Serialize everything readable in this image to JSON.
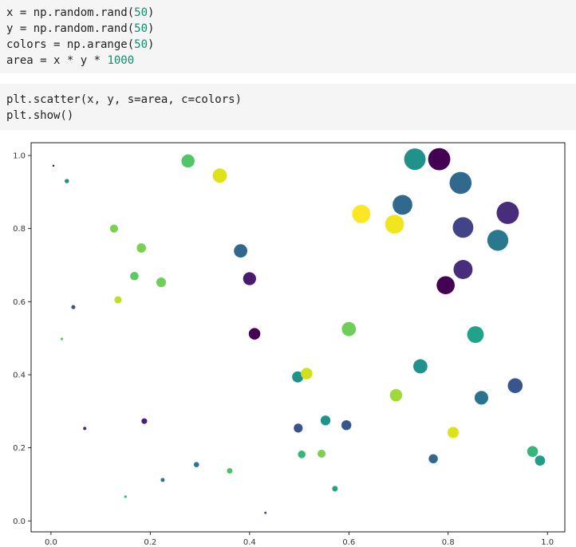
{
  "cells": [
    {
      "lines": [
        [
          {
            "t": "x = np.random.rand("
          },
          {
            "t": "50",
            "n": true
          },
          {
            "t": ")"
          }
        ],
        [
          {
            "t": "y = np.random.rand("
          },
          {
            "t": "50",
            "n": true
          },
          {
            "t": ")"
          }
        ],
        [
          {
            "t": "colors = np.arange("
          },
          {
            "t": "50",
            "n": true
          },
          {
            "t": ")"
          }
        ],
        [
          {
            "t": "area = x * y * "
          },
          {
            "t": "1000",
            "n": true
          }
        ]
      ]
    },
    {
      "lines": [
        [
          {
            "t": "plt.scatter(x, y, s=area, c=colors)"
          }
        ],
        [
          {
            "t": "plt.show()"
          }
        ]
      ]
    }
  ],
  "chart_data": {
    "type": "scatter",
    "xlim": [
      -0.04,
      1.035
    ],
    "ylim": [
      -0.03,
      1.035
    ],
    "xticks": [
      "0.0",
      "0.2",
      "0.4",
      "0.6",
      "0.8",
      "1.0"
    ],
    "yticks": [
      "0.0",
      "0.2",
      "0.4",
      "0.6",
      "0.8",
      "1.0"
    ],
    "grid": false,
    "colormap": "viridis",
    "points": [
      {
        "x": 0.005,
        "y": 0.972,
        "s": 5,
        "c": "#440154"
      },
      {
        "x": 0.032,
        "y": 0.93,
        "s": 30,
        "c": "#21918c"
      },
      {
        "x": 0.045,
        "y": 0.585,
        "s": 26,
        "c": "#3b528b"
      },
      {
        "x": 0.022,
        "y": 0.498,
        "s": 11,
        "c": "#5ec962"
      },
      {
        "x": 0.068,
        "y": 0.253,
        "s": 17,
        "c": "#482878"
      },
      {
        "x": 0.127,
        "y": 0.8,
        "s": 102,
        "c": "#7ad151"
      },
      {
        "x": 0.135,
        "y": 0.605,
        "s": 82,
        "c": "#bddf26"
      },
      {
        "x": 0.15,
        "y": 0.066,
        "s": 10,
        "c": "#35b779"
      },
      {
        "x": 0.168,
        "y": 0.67,
        "s": 112,
        "c": "#5ec962"
      },
      {
        "x": 0.182,
        "y": 0.747,
        "s": 136,
        "c": "#7ad151"
      },
      {
        "x": 0.188,
        "y": 0.273,
        "s": 51,
        "c": "#482173"
      },
      {
        "x": 0.222,
        "y": 0.653,
        "s": 145,
        "c": "#6ece58"
      },
      {
        "x": 0.225,
        "y": 0.112,
        "s": 25,
        "c": "#2a788e"
      },
      {
        "x": 0.276,
        "y": 0.985,
        "s": 272,
        "c": "#52c569"
      },
      {
        "x": 0.293,
        "y": 0.154,
        "s": 45,
        "c": "#2a788e"
      },
      {
        "x": 0.34,
        "y": 0.945,
        "s": 321,
        "c": "#dde318"
      },
      {
        "x": 0.36,
        "y": 0.137,
        "s": 49,
        "c": "#4ac16d"
      },
      {
        "x": 0.382,
        "y": 0.739,
        "s": 282,
        "c": "#31688e"
      },
      {
        "x": 0.4,
        "y": 0.663,
        "s": 265,
        "c": "#481b6d"
      },
      {
        "x": 0.41,
        "y": 0.512,
        "s": 210,
        "c": "#440154"
      },
      {
        "x": 0.432,
        "y": 0.022,
        "s": 9,
        "c": "#3b528b"
      },
      {
        "x": 0.497,
        "y": 0.394,
        "s": 196,
        "c": "#21918c"
      },
      {
        "x": 0.498,
        "y": 0.254,
        "s": 126,
        "c": "#3b528b"
      },
      {
        "x": 0.505,
        "y": 0.182,
        "s": 92,
        "c": "#35b779"
      },
      {
        "x": 0.515,
        "y": 0.403,
        "s": 207,
        "c": "#d0e11c"
      },
      {
        "x": 0.545,
        "y": 0.184,
        "s": 100,
        "c": "#7ad151"
      },
      {
        "x": 0.553,
        "y": 0.275,
        "s": 152,
        "c": "#21918c"
      },
      {
        "x": 0.572,
        "y": 0.088,
        "s": 50,
        "c": "#20a386"
      },
      {
        "x": 0.595,
        "y": 0.262,
        "s": 155,
        "c": "#39568c"
      },
      {
        "x": 0.6,
        "y": 0.525,
        "s": 315,
        "c": "#6ece58"
      },
      {
        "x": 0.625,
        "y": 0.84,
        "s": 525,
        "c": "#fde725"
      },
      {
        "x": 0.692,
        "y": 0.812,
        "s": 562,
        "c": "#f1e51d"
      },
      {
        "x": 0.695,
        "y": 0.344,
        "s": 239,
        "c": "#a0da39"
      },
      {
        "x": 0.708,
        "y": 0.865,
        "s": 612,
        "c": "#31688e"
      },
      {
        "x": 0.733,
        "y": 0.99,
        "s": 726,
        "c": "#21918c"
      },
      {
        "x": 0.744,
        "y": 0.423,
        "s": 315,
        "c": "#21918c"
      },
      {
        "x": 0.77,
        "y": 0.17,
        "s": 131,
        "c": "#31688e"
      },
      {
        "x": 0.782,
        "y": 0.99,
        "s": 774,
        "c": "#440154"
      },
      {
        "x": 0.795,
        "y": 0.645,
        "s": 513,
        "c": "#440154"
      },
      {
        "x": 0.81,
        "y": 0.242,
        "s": 196,
        "c": "#dde318"
      },
      {
        "x": 0.825,
        "y": 0.925,
        "s": 763,
        "c": "#31688e"
      },
      {
        "x": 0.83,
        "y": 0.688,
        "s": 571,
        "c": "#472d7b"
      },
      {
        "x": 0.83,
        "y": 0.803,
        "s": 666,
        "c": "#414487"
      },
      {
        "x": 0.855,
        "y": 0.51,
        "s": 436,
        "c": "#20a386"
      },
      {
        "x": 0.867,
        "y": 0.337,
        "s": 292,
        "c": "#2c728e"
      },
      {
        "x": 0.9,
        "y": 0.768,
        "s": 691,
        "c": "#2a788e"
      },
      {
        "x": 0.92,
        "y": 0.843,
        "s": 776,
        "c": "#472d7b"
      },
      {
        "x": 0.935,
        "y": 0.37,
        "s": 346,
        "c": "#39568c"
      },
      {
        "x": 0.97,
        "y": 0.19,
        "s": 184,
        "c": "#35b779"
      },
      {
        "x": 0.985,
        "y": 0.165,
        "s": 162,
        "c": "#1f9e89"
      }
    ]
  }
}
